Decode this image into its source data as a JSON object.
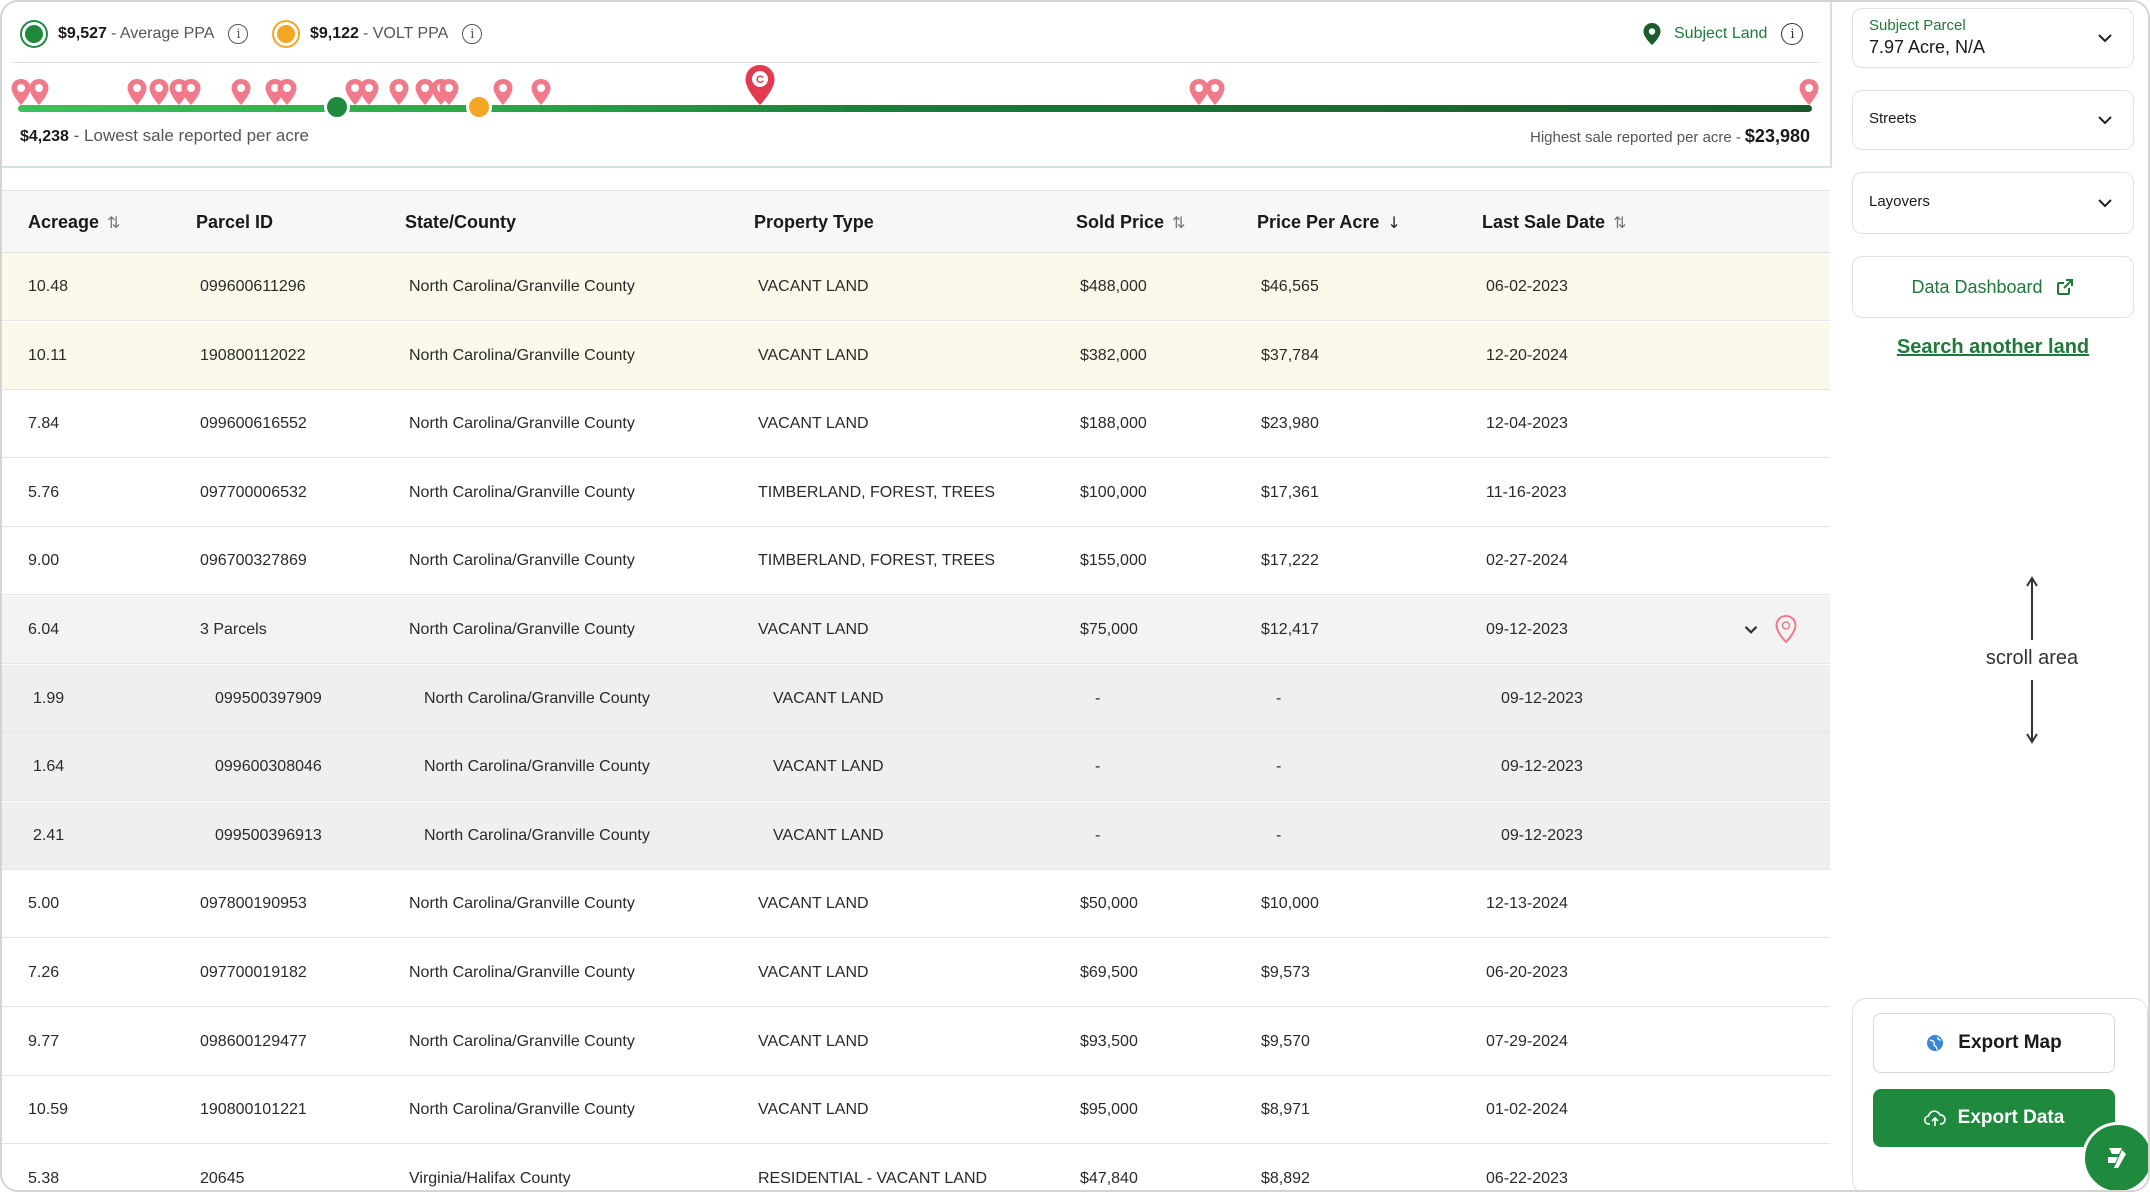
{
  "price_bar": {
    "average": {
      "value": "$9,527",
      "label": "- Average PPA",
      "color": "#1f8a3e"
    },
    "volt": {
      "value": "$9,122",
      "label": "- VOLT PPA",
      "color": "#f5a623"
    },
    "subject_land_label": "Subject Land",
    "low": {
      "value": "$4,238",
      "label": "- Lowest sale reported per acre"
    },
    "high": {
      "label": "Highest sale reported per acre -",
      "value": "$23,980"
    },
    "subject_pin_letter": "C"
  },
  "table": {
    "headers": {
      "acreage": "Acreage",
      "parcel_id": "Parcel ID",
      "state_county": "State/County",
      "property_type": "Property Type",
      "sold_price": "Sold Price",
      "price_per_acre": "Price Per Acre",
      "last_sale_date": "Last Sale Date"
    },
    "rows": [
      {
        "acreage": "10.48",
        "parcel_id": "099600611296",
        "state_county": "North Carolina/Granville County",
        "property_type": "VACANT LAND",
        "sold_price": "$488,000",
        "price_per_acre": "$46,565",
        "last_sale_date": "06-02-2023"
      },
      {
        "acreage": "10.11",
        "parcel_id": "190800112022",
        "state_county": "North Carolina/Granville County",
        "property_type": "VACANT LAND",
        "sold_price": "$382,000",
        "price_per_acre": "$37,784",
        "last_sale_date": "12-20-2024"
      },
      {
        "acreage": "7.84",
        "parcel_id": "099600616552",
        "state_county": "North Carolina/Granville County",
        "property_type": "VACANT LAND",
        "sold_price": "$188,000",
        "price_per_acre": "$23,980",
        "last_sale_date": "12-04-2023"
      },
      {
        "acreage": "5.76",
        "parcel_id": "097700006532",
        "state_county": "North Carolina/Granville County",
        "property_type": "TIMBERLAND, FOREST, TREES",
        "sold_price": "$100,000",
        "price_per_acre": "$17,361",
        "last_sale_date": "11-16-2023"
      },
      {
        "acreage": "9.00",
        "parcel_id": "096700327869",
        "state_county": "North Carolina/Granville County",
        "property_type": "TIMBERLAND, FOREST, TREES",
        "sold_price": "$155,000",
        "price_per_acre": "$17,222",
        "last_sale_date": "02-27-2024"
      },
      {
        "acreage": "6.04",
        "parcel_id": "3 Parcels",
        "state_county": "North Carolina/Granville County",
        "property_type": "VACANT LAND",
        "sold_price": "$75,000",
        "price_per_acre": "$12,417",
        "last_sale_date": "09-12-2023"
      },
      {
        "acreage": "1.99",
        "parcel_id": "099500397909",
        "state_county": "North Carolina/Granville County",
        "property_type": "VACANT LAND",
        "sold_price": "-",
        "price_per_acre": "-",
        "last_sale_date": "09-12-2023"
      },
      {
        "acreage": "1.64",
        "parcel_id": "099600308046",
        "state_county": "North Carolina/Granville County",
        "property_type": "VACANT LAND",
        "sold_price": "-",
        "price_per_acre": "-",
        "last_sale_date": "09-12-2023"
      },
      {
        "acreage": "2.41",
        "parcel_id": "099500396913",
        "state_county": "North Carolina/Granville County",
        "property_type": "VACANT LAND",
        "sold_price": "-",
        "price_per_acre": "-",
        "last_sale_date": "09-12-2023"
      },
      {
        "acreage": "5.00",
        "parcel_id": "097800190953",
        "state_county": "North Carolina/Granville County",
        "property_type": "VACANT LAND",
        "sold_price": "$50,000",
        "price_per_acre": "$10,000",
        "last_sale_date": "12-13-2024"
      },
      {
        "acreage": "7.26",
        "parcel_id": "097700019182",
        "state_county": "North Carolina/Granville County",
        "property_type": "VACANT LAND",
        "sold_price": "$69,500",
        "price_per_acre": "$9,573",
        "last_sale_date": "06-20-2023"
      },
      {
        "acreage": "9.77",
        "parcel_id": "098600129477",
        "state_county": "North Carolina/Granville County",
        "property_type": "VACANT LAND",
        "sold_price": "$93,500",
        "price_per_acre": "$9,570",
        "last_sale_date": "07-29-2024"
      },
      {
        "acreage": "10.59",
        "parcel_id": "190800101221",
        "state_county": "North Carolina/Granville County",
        "property_type": "VACANT LAND",
        "sold_price": "$95,000",
        "price_per_acre": "$8,971",
        "last_sale_date": "01-02-2024"
      },
      {
        "acreage": "5.38",
        "parcel_id": "20645",
        "state_county": "Virginia/Halifax County",
        "property_type": "RESIDENTIAL - VACANT LAND",
        "sold_price": "$47,840",
        "price_per_acre": "$8,892",
        "last_sale_date": "06-22-2023"
      }
    ]
  },
  "right_panel": {
    "subject_parcel": {
      "label": "Subject Parcel",
      "value": "7.97 Acre, N/A"
    },
    "streets_label": "Streets",
    "layovers_label": "Layovers",
    "dashboard_label": "Data Dashboard",
    "search_another_label": "Search another land",
    "scroll_area_label": "scroll area",
    "export_map_label": "Export Map",
    "export_data_label": "Export Data"
  },
  "colors": {
    "brand_green": "#1f8a3e",
    "accent_orange": "#f5a623",
    "pin_pink": "#f07a8a",
    "highlight_row": "#fbf9e9"
  },
  "icons": [
    "info-icon",
    "map-pin-icon",
    "sort-icon",
    "chevron-down-icon",
    "external-link-icon",
    "globe-icon",
    "cloud-upload-icon",
    "chat-icon",
    "arrow-up-icon",
    "arrow-down-icon"
  ]
}
